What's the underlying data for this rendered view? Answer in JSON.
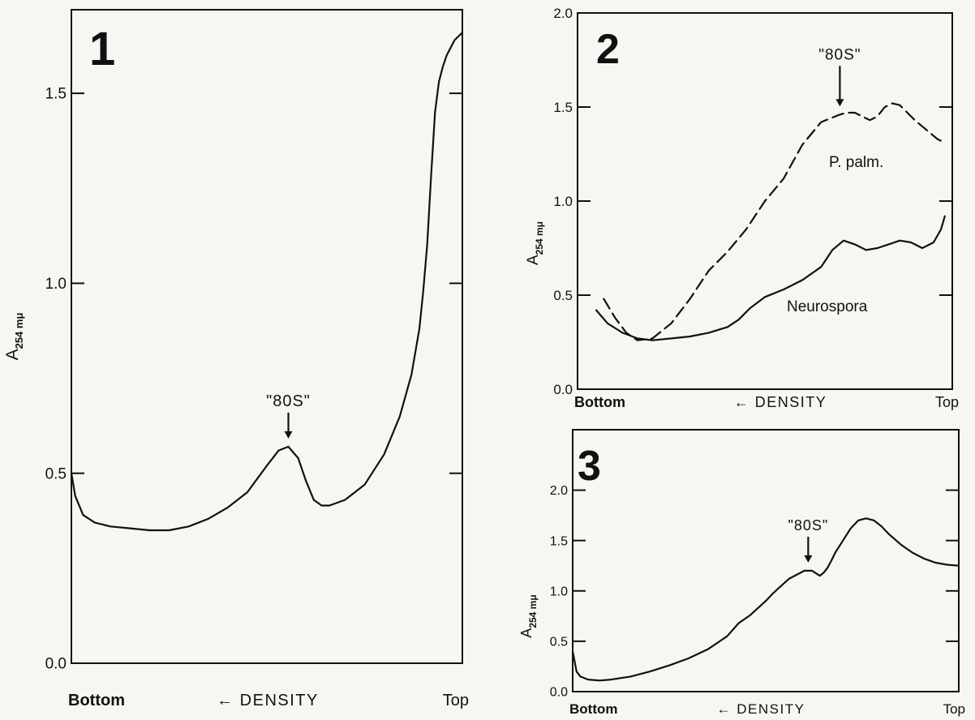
{
  "figure": {
    "axis_quantity": "A",
    "axis_subscript": "254 mμ",
    "bottom_label": "Bottom",
    "top_label": "Top",
    "density_label": "← DENSITY"
  },
  "chart_data": [
    {
      "panel": "1",
      "type": "line",
      "title": "",
      "xlabel": "← DENSITY",
      "ylabel": "A 254 mμ",
      "x_endpoints": [
        "Bottom",
        "Top"
      ],
      "xlim": [
        0,
        1
      ],
      "ylim": [
        0,
        1.72
      ],
      "yticks": [
        0.0,
        0.5,
        1.0,
        1.5
      ],
      "ytick_labels": [
        "0.0",
        "0.5",
        "1.0",
        "1.5"
      ],
      "grid": false,
      "series": [
        {
          "style": "solid",
          "x": [
            0,
            0.01,
            0.03,
            0.06,
            0.1,
            0.15,
            0.2,
            0.25,
            0.3,
            0.35,
            0.4,
            0.45,
            0.5,
            0.53,
            0.555,
            0.58,
            0.6,
            0.62,
            0.64,
            0.66,
            0.7,
            0.75,
            0.8,
            0.84,
            0.87,
            0.89,
            0.9,
            0.91,
            0.92,
            0.93,
            0.94,
            0.95,
            0.96,
            0.98,
            1.0
          ],
          "y": [
            0.5,
            0.44,
            0.39,
            0.37,
            0.36,
            0.355,
            0.35,
            0.35,
            0.36,
            0.38,
            0.41,
            0.45,
            0.52,
            0.56,
            0.57,
            0.54,
            0.48,
            0.43,
            0.415,
            0.415,
            0.43,
            0.47,
            0.55,
            0.65,
            0.76,
            0.88,
            0.98,
            1.1,
            1.28,
            1.45,
            1.53,
            1.57,
            1.6,
            1.64,
            1.66
          ]
        }
      ],
      "annotations": [
        {
          "text": "\"80S\"",
          "x": 0.555,
          "y": 0.57
        }
      ]
    },
    {
      "panel": "2",
      "type": "line",
      "title": "",
      "xlabel": "← DENSITY",
      "ylabel": "A 254 mμ",
      "x_endpoints": [
        "Bottom",
        "Top"
      ],
      "xlim": [
        0,
        1
      ],
      "ylim": [
        0,
        2.0
      ],
      "yticks": [
        0.0,
        0.5,
        1.0,
        1.5,
        2.0
      ],
      "ytick_labels": [
        "0.0",
        "0.5",
        "1.0",
        "1.5",
        "2.0"
      ],
      "grid": false,
      "series": [
        {
          "name": "P. palm.",
          "style": "dashed",
          "x": [
            0.07,
            0.1,
            0.13,
            0.16,
            0.2,
            0.25,
            0.3,
            0.35,
            0.4,
            0.45,
            0.5,
            0.55,
            0.6,
            0.65,
            0.7,
            0.72,
            0.74,
            0.76,
            0.78,
            0.8,
            0.82,
            0.84,
            0.86,
            0.88,
            0.9,
            0.93,
            0.96,
            0.98
          ],
          "y": [
            0.48,
            0.38,
            0.3,
            0.26,
            0.27,
            0.35,
            0.48,
            0.63,
            0.73,
            0.85,
            1.0,
            1.12,
            1.3,
            1.42,
            1.46,
            1.47,
            1.47,
            1.45,
            1.43,
            1.45,
            1.5,
            1.52,
            1.51,
            1.47,
            1.43,
            1.38,
            1.33,
            1.31
          ]
        },
        {
          "name": "Neurospora",
          "style": "solid",
          "x": [
            0.05,
            0.08,
            0.12,
            0.16,
            0.2,
            0.25,
            0.3,
            0.35,
            0.4,
            0.43,
            0.46,
            0.5,
            0.55,
            0.6,
            0.65,
            0.68,
            0.71,
            0.74,
            0.77,
            0.8,
            0.83,
            0.86,
            0.89,
            0.92,
            0.95,
            0.97,
            0.98
          ],
          "y": [
            0.42,
            0.35,
            0.3,
            0.27,
            0.26,
            0.27,
            0.28,
            0.3,
            0.33,
            0.37,
            0.43,
            0.49,
            0.53,
            0.58,
            0.65,
            0.74,
            0.79,
            0.77,
            0.74,
            0.75,
            0.77,
            0.79,
            0.78,
            0.75,
            0.78,
            0.85,
            0.92
          ]
        }
      ],
      "annotations": [
        {
          "text": "\"80S\"",
          "x": 0.7,
          "y": 1.46
        }
      ]
    },
    {
      "panel": "3",
      "type": "line",
      "title": "",
      "xlabel": "← DENSITY",
      "ylabel": "A 254 mμ",
      "x_endpoints": [
        "Bottom",
        "Top"
      ],
      "xlim": [
        0,
        1
      ],
      "ylim": [
        0,
        2.6
      ],
      "yticks": [
        0.0,
        0.5,
        1.0,
        1.5,
        2.0
      ],
      "ytick_labels": [
        "0.0",
        "0.5",
        "1.0",
        "1.5",
        "2.0"
      ],
      "grid": false,
      "series": [
        {
          "style": "solid",
          "x": [
            0,
            0.005,
            0.01,
            0.02,
            0.04,
            0.07,
            0.1,
            0.15,
            0.2,
            0.25,
            0.3,
            0.35,
            0.4,
            0.43,
            0.46,
            0.5,
            0.52,
            0.54,
            0.56,
            0.58,
            0.6,
            0.62,
            0.64,
            0.65,
            0.66,
            0.67,
            0.68,
            0.7,
            0.72,
            0.74,
            0.76,
            0.78,
            0.8,
            0.82,
            0.85,
            0.88,
            0.91,
            0.94,
            0.97,
            1.0
          ],
          "y": [
            0.4,
            0.3,
            0.2,
            0.15,
            0.12,
            0.11,
            0.12,
            0.15,
            0.2,
            0.26,
            0.33,
            0.42,
            0.55,
            0.68,
            0.76,
            0.9,
            0.98,
            1.05,
            1.12,
            1.16,
            1.2,
            1.2,
            1.15,
            1.18,
            1.23,
            1.3,
            1.38,
            1.5,
            1.62,
            1.7,
            1.72,
            1.7,
            1.64,
            1.56,
            1.46,
            1.38,
            1.32,
            1.28,
            1.26,
            1.25
          ]
        }
      ],
      "annotations": [
        {
          "text": "\"80S\"",
          "x": 0.61,
          "y": 1.2
        }
      ]
    }
  ]
}
